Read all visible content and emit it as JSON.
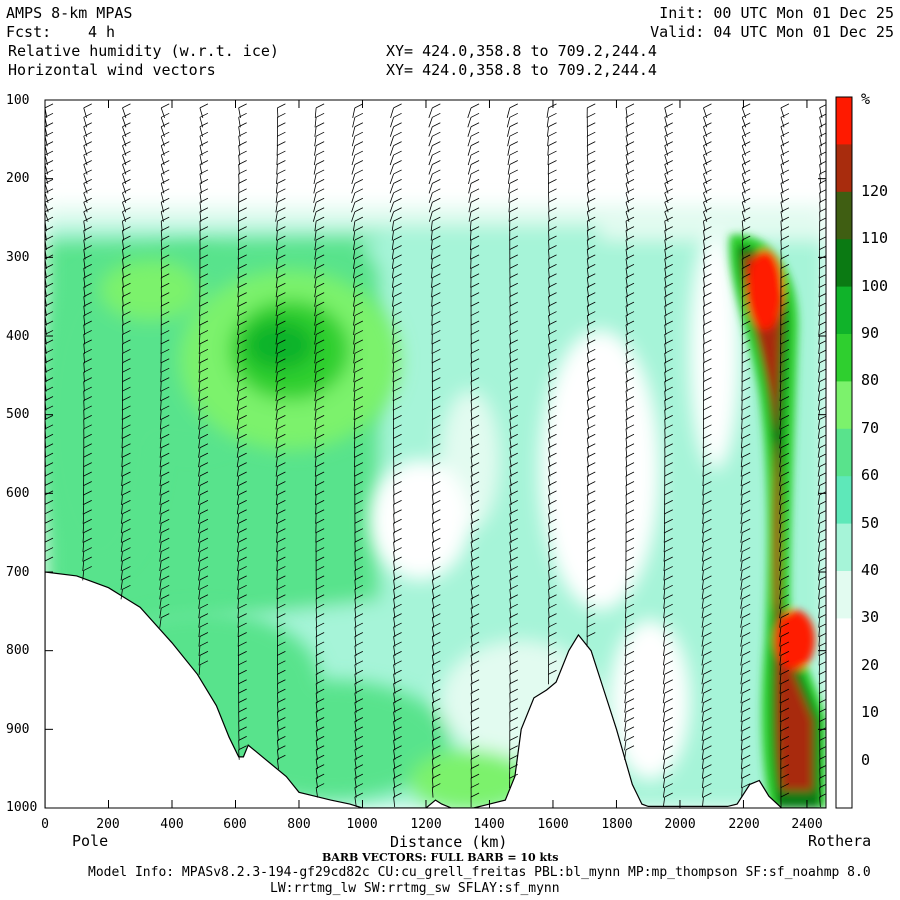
{
  "header": {
    "model": "AMPS 8-km MPAS",
    "fcst_label": "Fcst:",
    "fcst_value": "4 h",
    "field1": "Relative humidity (w.r.t. ice)",
    "field2": "Horizontal wind vectors",
    "xy1": "XY= 424.0,358.8 to 709.2,244.4",
    "xy2": "XY= 424.0,358.8 to 709.2,244.4",
    "init": "Init: 00 UTC Mon 01 Dec 25",
    "valid": "Valid: 04 UTC Mon 01 Dec 25"
  },
  "chart_data": {
    "type": "heatmap",
    "title": "Relative humidity (w.r.t. ice)",
    "xlabel": "Distance (km)",
    "ylabel": "",
    "xlim": [
      0,
      2460
    ],
    "ylim": [
      1000,
      100
    ],
    "x_ticks": [
      0,
      200,
      400,
      600,
      800,
      1000,
      1200,
      1400,
      1600,
      1800,
      2000,
      2200,
      2400
    ],
    "y_ticks": [
      100,
      200,
      300,
      400,
      500,
      600,
      700,
      800,
      900,
      1000
    ],
    "x_end_labels": {
      "left": "Pole",
      "right": "Rothera"
    },
    "colorbar": {
      "unit": "%",
      "levels": [
        0,
        10,
        20,
        30,
        40,
        50,
        60,
        70,
        80,
        90,
        100,
        110,
        120
      ],
      "colors": [
        "#ffffff",
        "#ffffff",
        "#ffffff",
        "#ffffff",
        "#e2fbf0",
        "#a6f4d8",
        "#5ee8b9",
        "#59e38c",
        "#7cf26c",
        "#2fcf2f",
        "#10b32a",
        "#0b7a13",
        "#3f5e12",
        "#a82c0d",
        "#ff1a00"
      ]
    },
    "terrain_profile": {
      "x_km": [
        0,
        100,
        200,
        300,
        400,
        480,
        540,
        580,
        610,
        625,
        640,
        700,
        760,
        800,
        850,
        900,
        960,
        1000,
        1100,
        1200,
        1230,
        1250,
        1280,
        1350,
        1400,
        1450,
        1480,
        1500,
        1540,
        1580,
        1610,
        1650,
        1680,
        1720,
        1760,
        1800,
        1850,
        1880,
        1900,
        1950,
        2000,
        2100,
        2150,
        2180,
        2220,
        2250,
        2280,
        2320,
        2360,
        2400,
        2440,
        2460
      ],
      "p_hpa": [
        700,
        705,
        720,
        745,
        790,
        830,
        870,
        910,
        935,
        935,
        920,
        940,
        960,
        980,
        985,
        990,
        995,
        1000,
        1000,
        1000,
        990,
        995,
        1000,
        1000,
        995,
        990,
        960,
        900,
        860,
        850,
        840,
        800,
        780,
        800,
        850,
        900,
        970,
        995,
        998,
        998,
        998,
        998,
        998,
        995,
        970,
        965,
        985,
        1000,
        1000,
        1000,
        1000,
        1000
      ]
    },
    "annotations": [
      "BARB VECTORS: FULL BARB = 10 kts"
    ]
  },
  "footer": {
    "barb_note": "BARB VECTORS: FULL BARB = 10 kts",
    "model_info": "Model Info: MPASv8.2.3-194-gf29cd82c CU:cu_grell_freitas PBL:bl_mynn MP:mp_thompson SF:sf_noahmp 8.0",
    "model_info2": "LW:rrtmg_lw SW:rrtmg_sw SFLAY:sf_mynn"
  }
}
